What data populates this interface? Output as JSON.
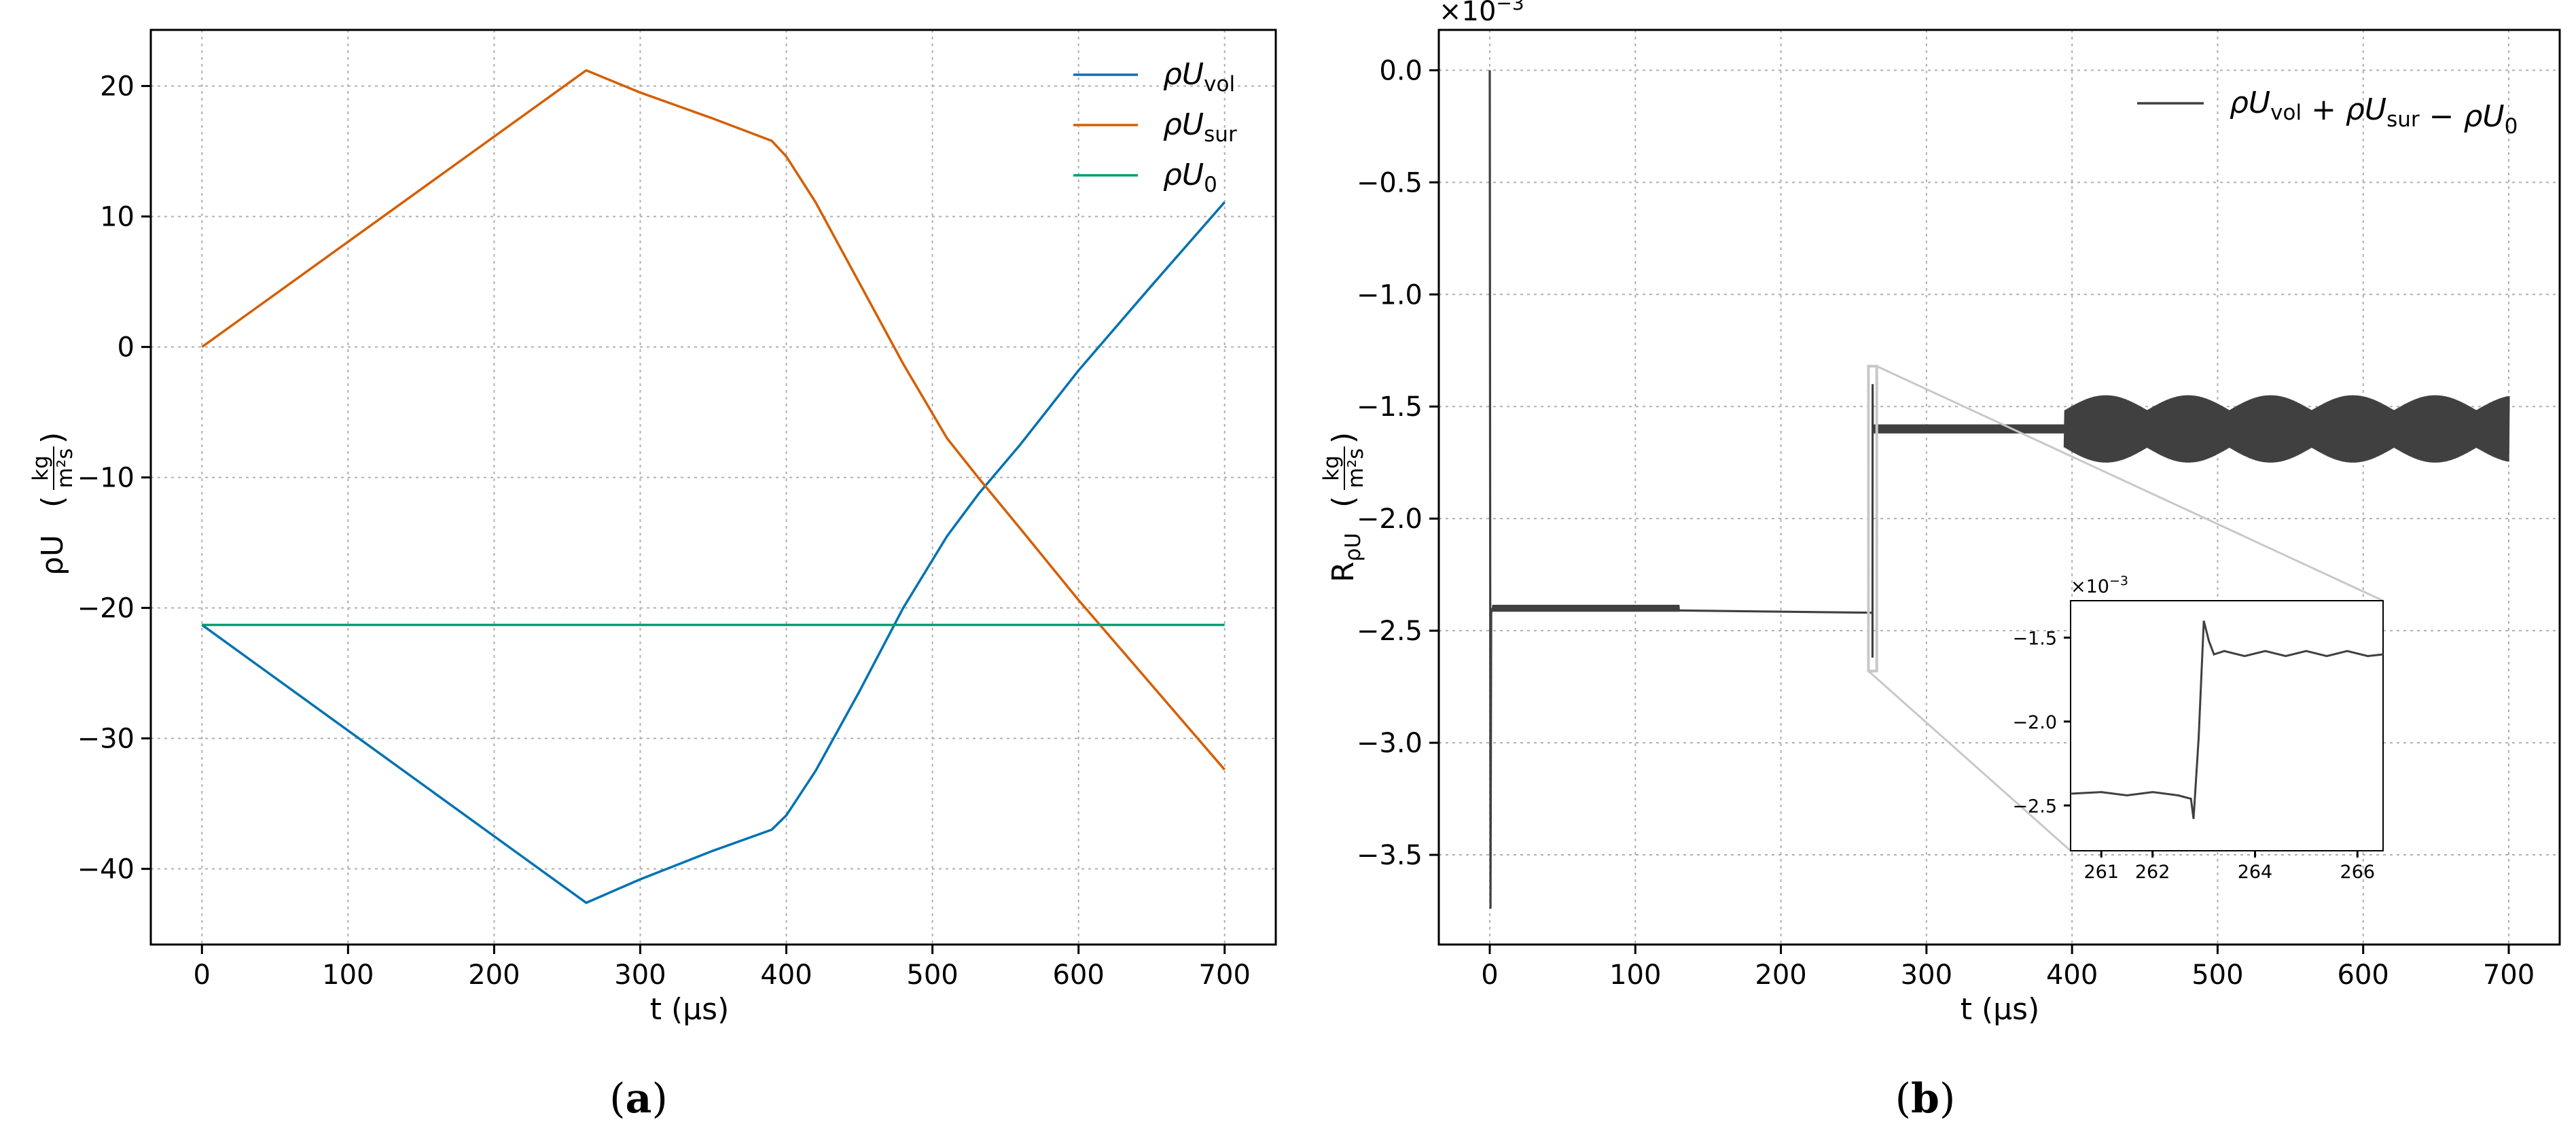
{
  "chart_data": [
    {
      "panel": "(a)",
      "panel_letter": "a",
      "type": "line",
      "xlabel": "t (μs)",
      "ylabel": "ρU",
      "ylabel_unit": {
        "numerator": "kg",
        "denominator": "m²s"
      },
      "xlim": [
        -35,
        735
      ],
      "ylim": [
        -45.8,
        24.3
      ],
      "xticks": [
        0,
        100,
        200,
        300,
        400,
        500,
        600,
        700
      ],
      "yticks": [
        -40,
        -30,
        -20,
        -10,
        0,
        10,
        20
      ],
      "xtick_labels": [
        "0",
        "100",
        "200",
        "300",
        "400",
        "500",
        "600",
        "700"
      ],
      "ytick_labels": [
        "−40",
        "−30",
        "−20",
        "−10",
        "0",
        "10",
        "20"
      ],
      "grid": true,
      "legend_position": "top-right",
      "series": [
        {
          "name": "ρU",
          "name_sub": "vol",
          "color": "#0072b2",
          "x": [
            0,
            263,
            300,
            350,
            390,
            400,
            420,
            450,
            480,
            510,
            532,
            560,
            600,
            650,
            700
          ],
          "y": [
            -21.3,
            -42.6,
            -40.8,
            -38.6,
            -37.0,
            -35.9,
            -32.5,
            -26.4,
            -20.0,
            -14.5,
            -11.2,
            -7.5,
            -1.8,
            4.7,
            11.1
          ]
        },
        {
          "name": "ρU",
          "name_sub": "sur",
          "color": "#d55e00",
          "x": [
            0,
            263,
            300,
            350,
            390,
            400,
            420,
            450,
            480,
            510,
            532,
            560,
            600,
            650,
            700
          ],
          "y": [
            0,
            21.2,
            19.5,
            17.5,
            15.8,
            14.6,
            11.1,
            4.9,
            -1.3,
            -7.0,
            -10.1,
            -13.9,
            -19.4,
            -25.9,
            -32.4
          ]
        },
        {
          "name": "ρU",
          "name_sub": "0",
          "color": "#009e73",
          "x": [
            0,
            700
          ],
          "y": [
            -21.3,
            -21.3
          ]
        }
      ]
    },
    {
      "panel": "(b)",
      "panel_letter": "b",
      "type": "line",
      "xlabel": "t (μs)",
      "ylabel": "R",
      "ylabel_sub": "ρU",
      "ylabel_unit": {
        "numerator": "kg",
        "denominator": "m²s"
      },
      "scale_label": "×10",
      "scale_exp": "−3",
      "xlim": [
        -35,
        735
      ],
      "ylim": [
        -3.9,
        0.18
      ],
      "xticks": [
        0,
        100,
        200,
        300,
        400,
        500,
        600,
        700
      ],
      "yticks": [
        0.0,
        -0.5,
        -1.0,
        -1.5,
        -2.0,
        -2.5,
        -3.0,
        -3.5
      ],
      "xtick_labels": [
        "0",
        "100",
        "200",
        "300",
        "400",
        "500",
        "600",
        "700"
      ],
      "ytick_labels": [
        "0.0",
        "−0.5",
        "−1.0",
        "−1.5",
        "−2.0",
        "−2.5",
        "−3.0",
        "−3.5"
      ],
      "grid": true,
      "legend_position": "top-right",
      "series": [
        {
          "name": "ρU",
          "name_parts": [
            {
              "text": "ρU",
              "sub": "vol"
            },
            {
              "op": " + "
            },
            {
              "text": "ρU",
              "sub": "sur"
            },
            {
              "op": " − "
            },
            {
              "text": "ρU",
              "sub": "0"
            }
          ],
          "color": "#404040",
          "segments": [
            {
              "x": [
                0,
                0.5,
                1,
                1.5,
                2
              ],
              "y": [
                0.0,
                -3.74,
                -2.4,
                -2.41,
                -2.4
              ]
            },
            {
              "x": [
                2,
                130
              ],
              "y": [
                -2.4,
                -2.4
              ],
              "oscillation_amplitude": 0.015
            },
            {
              "x": [
                130,
                262.9
              ],
              "y": [
                -2.41,
                -2.42
              ]
            },
            {
              "x": [
                262.9,
                263.0,
                263.1,
                263.3
              ],
              "y": [
                -2.62,
                -1.4,
                -1.6,
                -1.6
              ]
            },
            {
              "x": [
                263.3,
                395
              ],
              "y": [
                -1.6,
                -1.6
              ],
              "oscillation_amplitude": 0.02
            },
            {
              "x": [
                395,
                700
              ],
              "y": [
                -1.6,
                -1.6
              ],
              "oscillation_amplitude": 0.15
            }
          ]
        }
      ],
      "inset": {
        "scale_label": "×10",
        "scale_exp": "−3",
        "xlim": [
          260.4,
          266.5
        ],
        "ylim": [
          -2.77,
          -1.28
        ],
        "xticks": [
          261,
          262,
          264,
          266
        ],
        "yticks": [
          -1.5,
          -2.0,
          -2.5
        ],
        "xtick_labels": [
          "261",
          "262",
          "264",
          "266"
        ],
        "ytick_labels": [
          "−1.5",
          "−2.0",
          "−2.5"
        ],
        "zoom_region": {
          "x": [
            262,
            264
          ],
          "y": [
            -2.68,
            -1.32
          ]
        },
        "series": {
          "x": [
            260.4,
            261.0,
            261.5,
            262.0,
            262.5,
            262.75,
            262.8,
            262.9,
            263.0,
            263.1,
            263.2,
            263.4,
            263.8,
            264.2,
            264.6,
            265.0,
            265.4,
            265.8,
            266.2,
            266.5
          ],
          "y": [
            -2.43,
            -2.42,
            -2.44,
            -2.42,
            -2.44,
            -2.46,
            -2.58,
            -2.1,
            -1.4,
            -1.52,
            -1.6,
            -1.58,
            -1.61,
            -1.58,
            -1.61,
            -1.58,
            -1.61,
            -1.58,
            -1.61,
            -1.6
          ]
        }
      }
    }
  ]
}
